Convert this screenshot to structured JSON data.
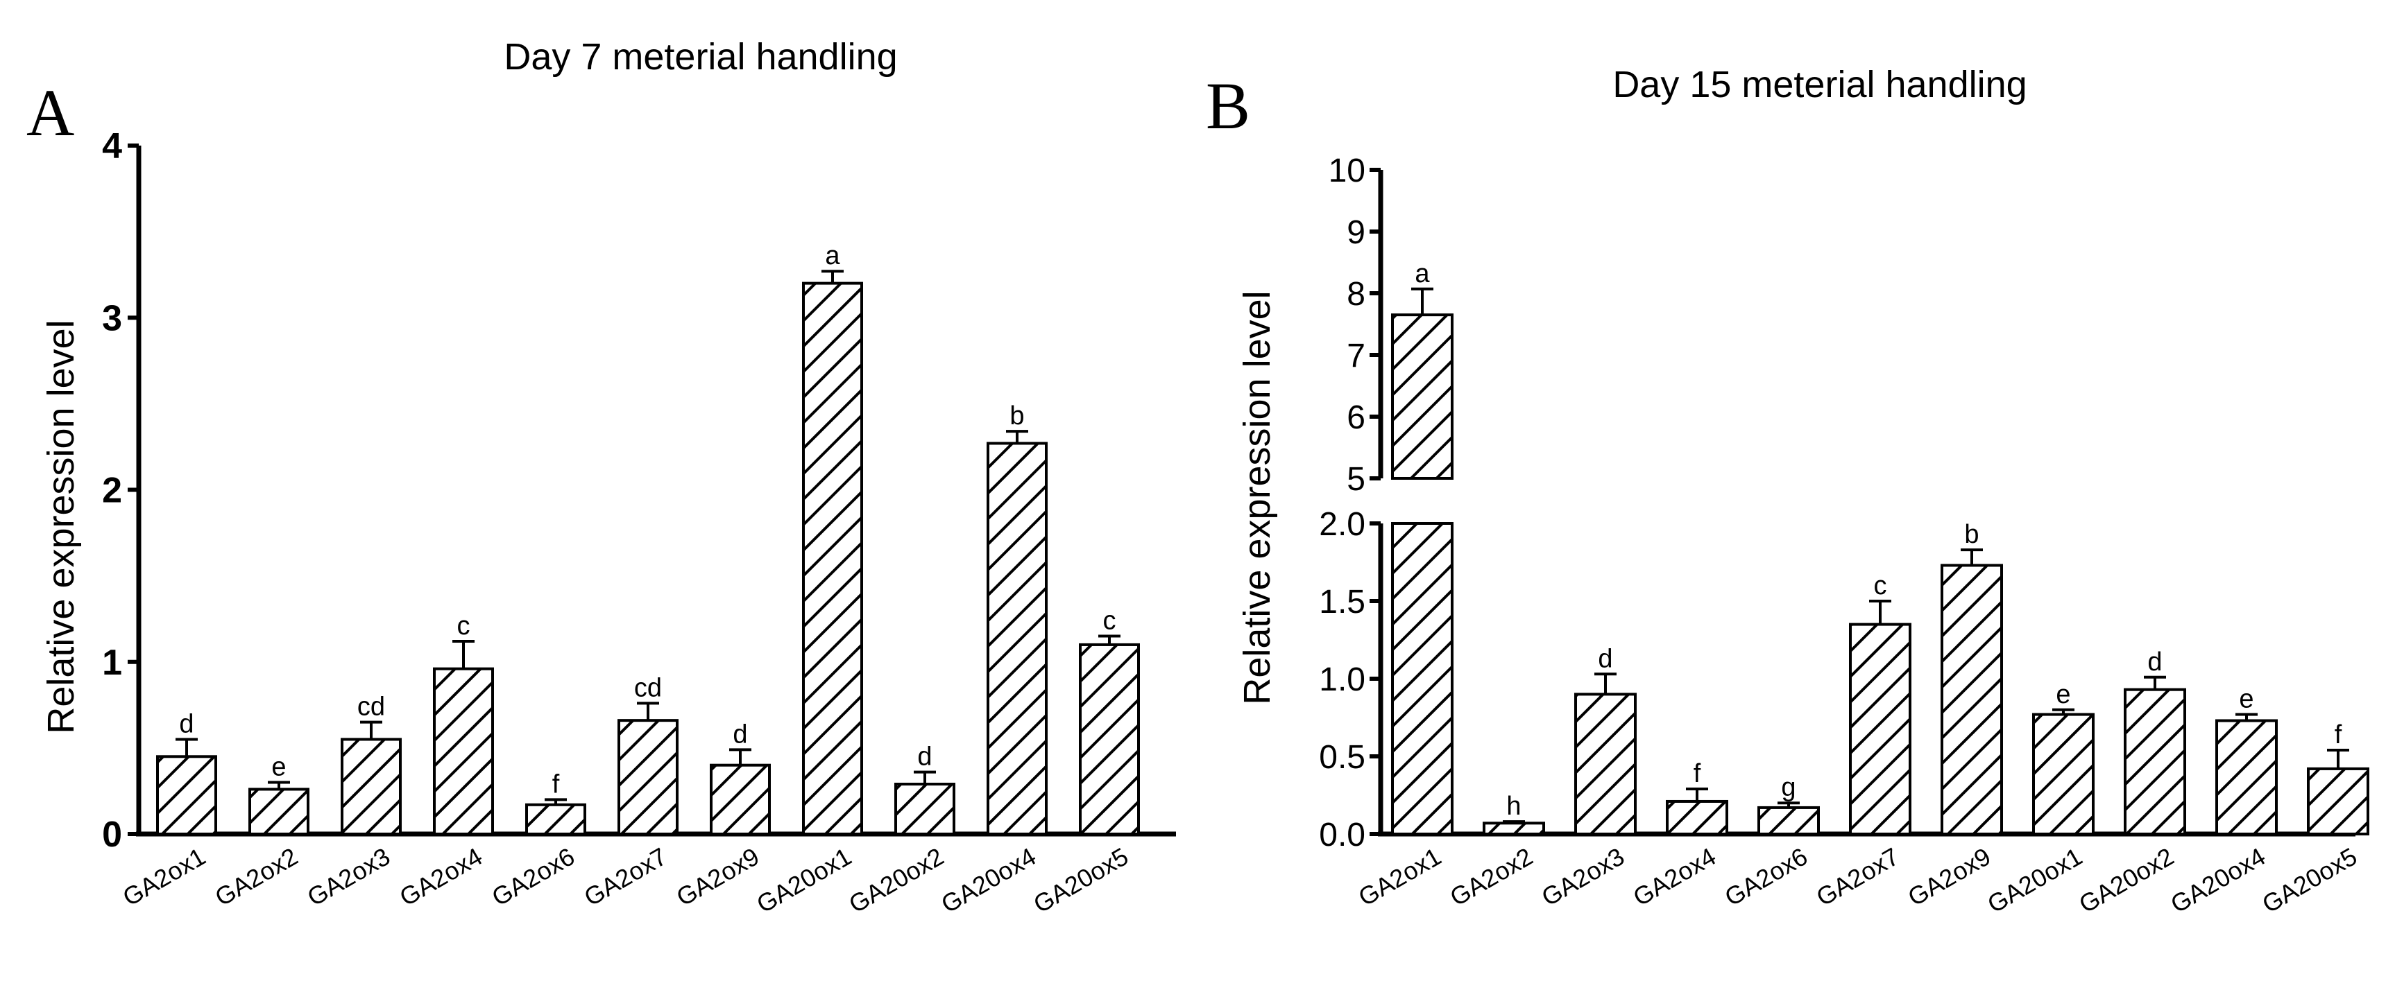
{
  "chart_data": [
    {
      "panel": "A",
      "type": "bar",
      "title": "Day 7 meterial handling",
      "xlabel": "",
      "ylabel": "Relative expression level",
      "ylim": [
        0,
        4
      ],
      "yticks": [
        0,
        1,
        2,
        3,
        4
      ],
      "ytick_labels": [
        "0",
        "1",
        "2",
        "3",
        "4"
      ],
      "categories": [
        "GA2ox1",
        "GA2ox2",
        "GA2ox3",
        "GA2ox4",
        "GA2ox6",
        "GA2ox7",
        "GA2ox9",
        "GA20ox1",
        "GA20ox2",
        "GA20ox4",
        "GA20ox5"
      ],
      "values": [
        0.45,
        0.26,
        0.55,
        0.96,
        0.17,
        0.66,
        0.4,
        3.2,
        0.29,
        2.27,
        1.1
      ],
      "errors": [
        0.1,
        0.04,
        0.1,
        0.16,
        0.03,
        0.1,
        0.09,
        0.07,
        0.07,
        0.07,
        0.05
      ],
      "significance": [
        "d",
        "e",
        "cd",
        "c",
        "f",
        "cd",
        "d",
        "a",
        "d",
        "b",
        "c"
      ],
      "pattern": "diagonal-hatch"
    },
    {
      "panel": "B",
      "type": "bar",
      "title": "Day 15 meterial handling",
      "xlabel": "",
      "ylabel": "Relative expression level",
      "ylim": [
        0,
        10
      ],
      "axis_break": {
        "lower": [
          0,
          2.0
        ],
        "upper": [
          5,
          10
        ]
      },
      "yticks_lower": [
        0.0,
        0.5,
        1.0,
        1.5,
        2.0
      ],
      "ytick_labels_lower": [
        "0.0",
        "0.5",
        "1.0",
        "1.5",
        "2.0"
      ],
      "yticks_upper": [
        5,
        6,
        7,
        8,
        9,
        10
      ],
      "ytick_labels_upper": [
        "5",
        "6",
        "7",
        "8",
        "9",
        "10"
      ],
      "categories": [
        "GA2ox1",
        "GA2ox2",
        "GA2ox3",
        "GA2ox4",
        "GA2ox6",
        "GA2ox7",
        "GA2ox9",
        "GA20ox1",
        "GA20ox2",
        "GA20ox4",
        "GA20ox5"
      ],
      "values": [
        7.65,
        0.07,
        0.9,
        0.21,
        0.17,
        1.35,
        1.73,
        0.77,
        0.93,
        0.73,
        0.42
      ],
      "errors": [
        0.42,
        0.01,
        0.13,
        0.08,
        0.03,
        0.15,
        0.1,
        0.03,
        0.08,
        0.04,
        0.12
      ],
      "significance": [
        "a",
        "h",
        "d",
        "f",
        "g",
        "c",
        "b",
        "e",
        "d",
        "e",
        "f"
      ],
      "pattern": "diagonal-hatch"
    }
  ]
}
